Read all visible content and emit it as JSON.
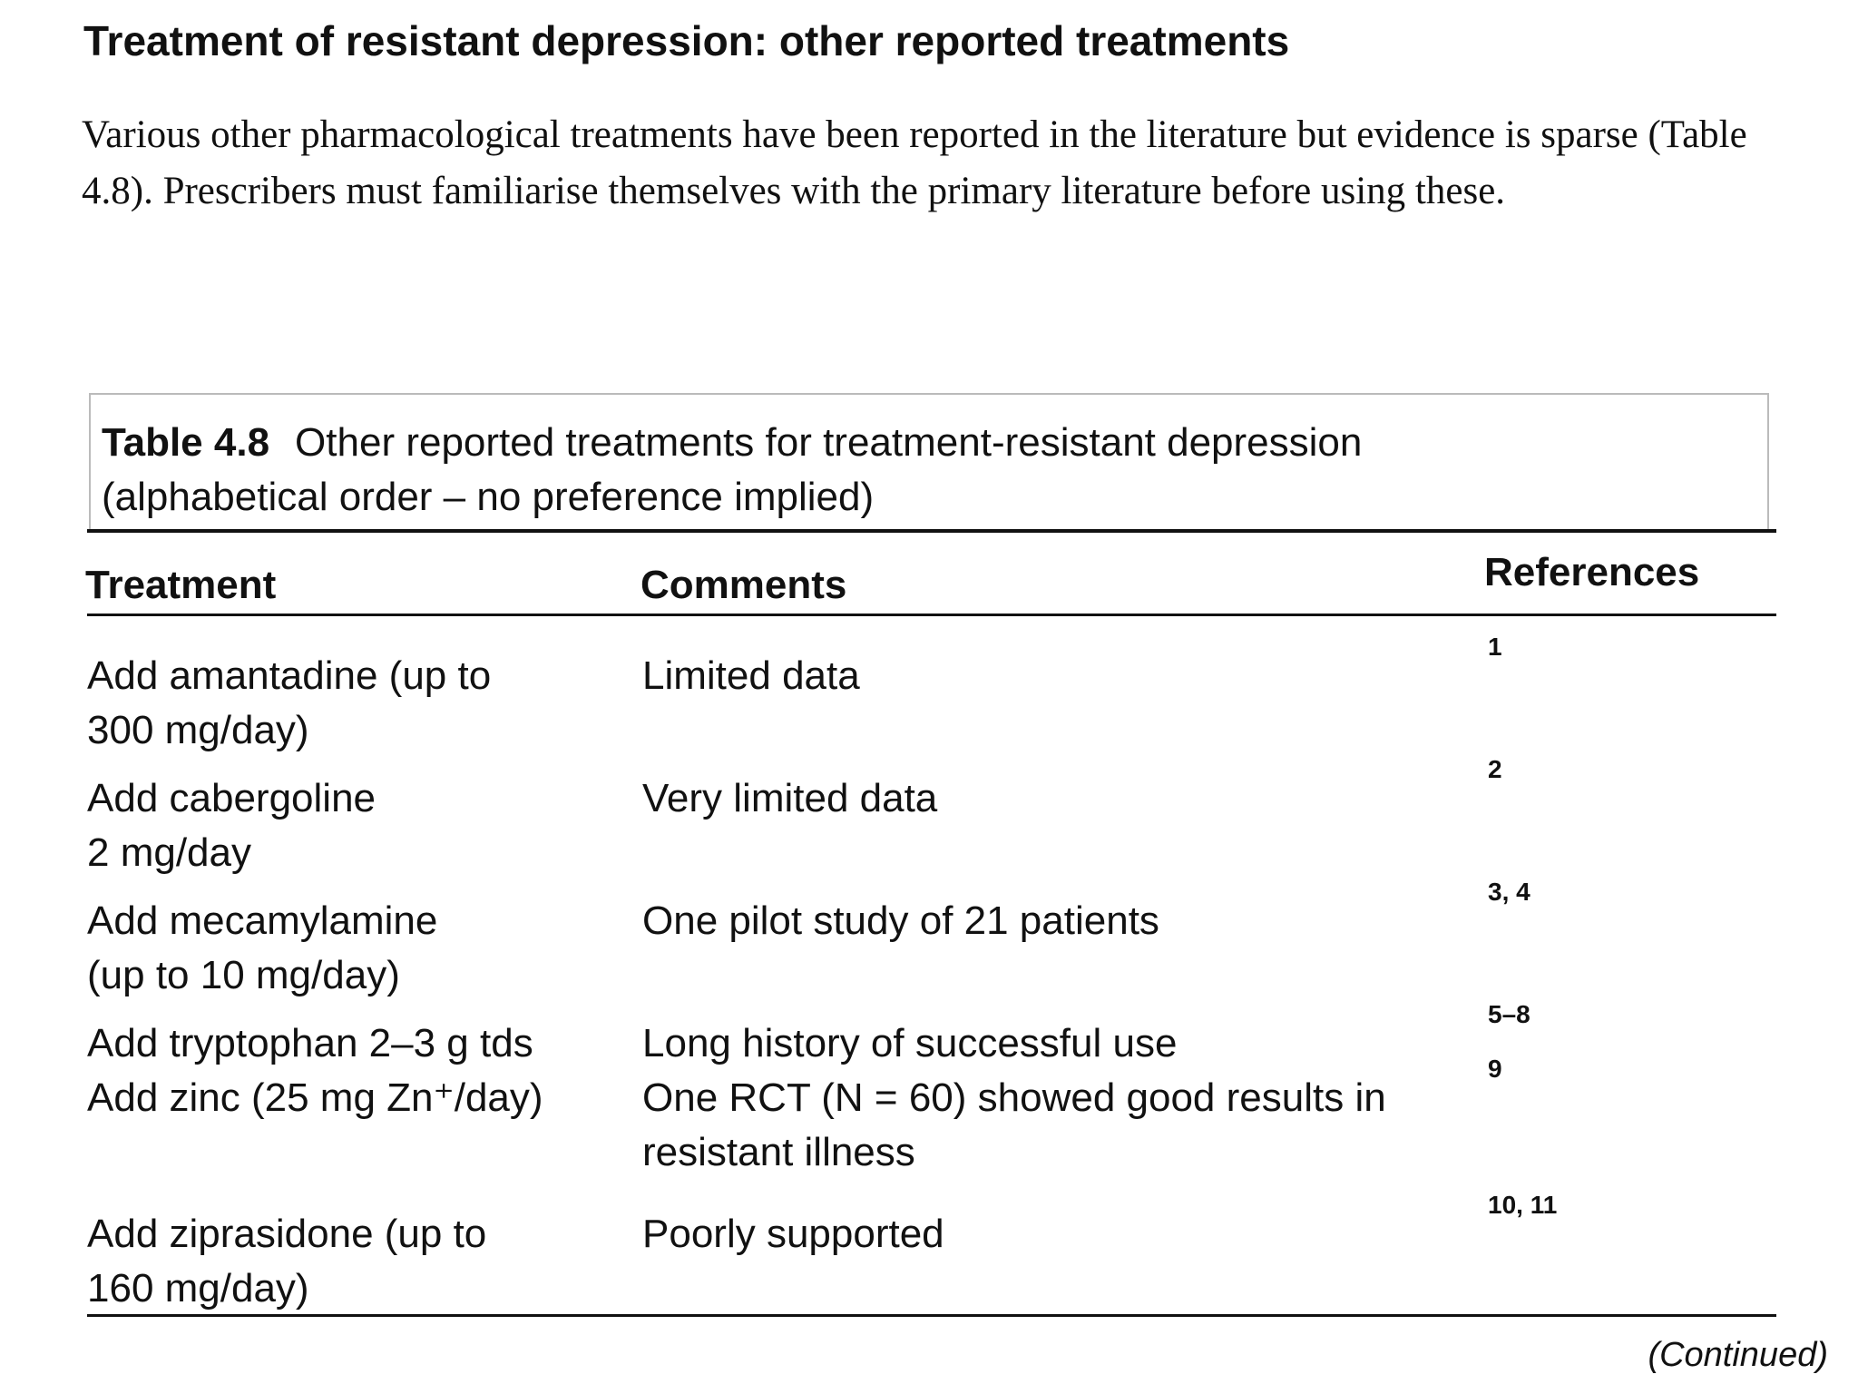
{
  "heading": "Treatment of resistant depression: other reported treatments",
  "intro": "Various other pharmacological treatments have been reported in the literature but evidence is sparse (Table 4.8). Prescribers must familiarise themselves with the primary literature before using these.",
  "table": {
    "label": "Table 4.8",
    "title": "Other reported treatments for treatment-resistant depression\n(alphabetical order – no preference implied)",
    "headers": [
      "Treatment",
      "Comments",
      "References"
    ],
    "rows": [
      [
        "Add amantadine (up to\n300 mg/day)",
        "Limited data",
        "1"
      ],
      [
        "Add cabergoline\n2 mg/day",
        "Very limited data",
        "2"
      ],
      [
        "Add mecamylamine\n(up to 10 mg/day)",
        "One pilot study of 21 patients",
        "3, 4"
      ],
      [
        "Add tryptophan 2–3 g tds",
        "Long history of successful use",
        "5–8"
      ],
      [
        "Add zinc (25 mg Zn⁺/day)",
        "One RCT (N = 60) showed good results in\nresistant illness",
        "9"
      ],
      [
        "Add ziprasidone (up to\n160 mg/day)",
        "Poorly supported",
        "10, 11"
      ]
    ]
  },
  "footer": "(Continued)"
}
